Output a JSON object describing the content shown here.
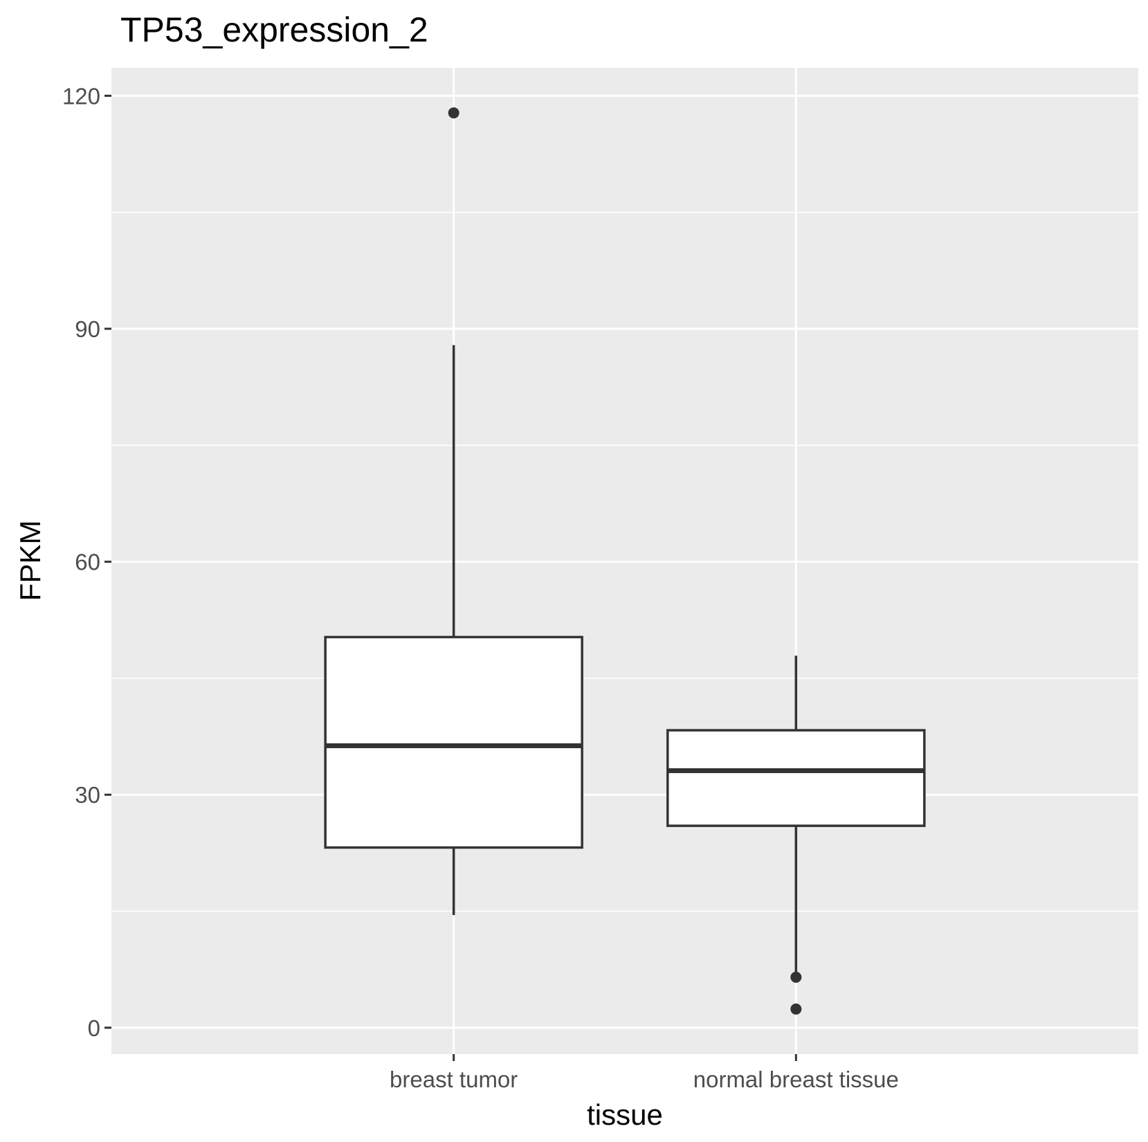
{
  "chart_data": {
    "type": "box",
    "title": "TP53_expression_2",
    "xlabel": "tissue",
    "ylabel": "FPKM",
    "ylim": [
      -3.4,
      123.6
    ],
    "yticks": [
      0,
      30,
      60,
      90,
      120
    ],
    "grid": true,
    "legend": "none",
    "colors": {
      "panel": "#ebebeb",
      "grid": "#ffffff",
      "box_fill": "#ffffff",
      "box_stroke": "#333333",
      "tick_text": "#4d4d4d"
    },
    "categories": [
      "breast tumor",
      "normal breast tissue"
    ],
    "boxes": [
      {
        "category": "breast tumor",
        "whisker_low": 14.5,
        "q1": 23.2,
        "median": 36.3,
        "q3": 50.3,
        "whisker_high": 87.9,
        "outliers": [
          117.8
        ]
      },
      {
        "category": "normal breast tissue",
        "whisker_low": 6.6,
        "q1": 26.0,
        "median": 33.1,
        "q3": 38.3,
        "whisker_high": 47.9,
        "outliers": [
          6.5,
          2.4
        ]
      }
    ]
  }
}
